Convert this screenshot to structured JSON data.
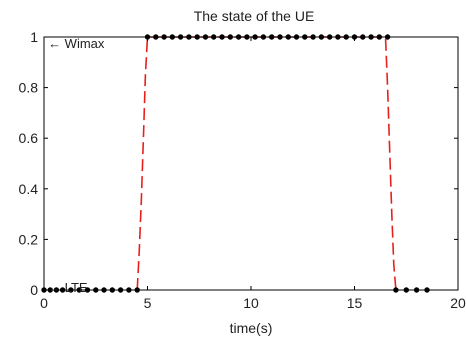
{
  "chart_data": {
    "type": "line",
    "title": "The state of the UE",
    "xlabel": "time(s)",
    "ylabel": "",
    "xlim": [
      0,
      20
    ],
    "ylim": [
      0,
      1
    ],
    "xticks": [
      0,
      5,
      10,
      15,
      20
    ],
    "yticks": [
      0,
      0.2,
      0.4,
      0.6,
      0.8,
      1
    ],
    "xtick_labels": [
      "0",
      "5",
      "10",
      "15",
      "20"
    ],
    "ytick_labels": [
      "0",
      "0.2",
      "0.4",
      "0.6",
      "0.8",
      "1"
    ],
    "grid": false,
    "annotations": [
      {
        "text": "← Wimax",
        "x": 0.1,
        "y": 1
      },
      {
        "text": "← LTE",
        "x": 0.1,
        "y": 0
      }
    ],
    "series": [
      {
        "style": "dashed",
        "color": "#e8201c",
        "x": [
          4.5,
          4.6,
          4.7,
          4.8,
          4.9,
          5.0,
          16.5,
          16.6,
          16.7,
          16.8,
          16.9,
          17.0
        ],
        "y": [
          0,
          0.15,
          0.35,
          0.6,
          0.85,
          1,
          1,
          0.8,
          0.55,
          0.3,
          0.1,
          0
        ]
      },
      {
        "style": "markers",
        "color": "#000000",
        "x": [
          0.0,
          0.3,
          0.6,
          0.9,
          1.3,
          1.7,
          2.1,
          2.5,
          2.9,
          3.3,
          3.7,
          4.1,
          4.5,
          5.0,
          5.4,
          5.8,
          6.2,
          6.6,
          7.0,
          7.4,
          7.8,
          8.2,
          8.6,
          9.0,
          9.4,
          9.8,
          10.2,
          10.6,
          11.0,
          11.4,
          11.8,
          12.2,
          12.6,
          13.0,
          13.4,
          13.8,
          14.2,
          14.6,
          15.0,
          15.4,
          15.8,
          16.2,
          16.6,
          17.0,
          17.5,
          18.0,
          18.5
        ],
        "y": [
          0,
          0,
          0,
          0,
          0,
          0,
          0,
          0,
          0,
          0,
          0,
          0,
          0,
          1,
          1,
          1,
          1,
          1,
          1,
          1,
          1,
          1,
          1,
          1,
          1,
          1,
          1,
          1,
          1,
          1,
          1,
          1,
          1,
          1,
          1,
          1,
          1,
          1,
          1,
          1,
          1,
          1,
          1,
          0,
          0,
          0,
          0
        ]
      }
    ]
  }
}
